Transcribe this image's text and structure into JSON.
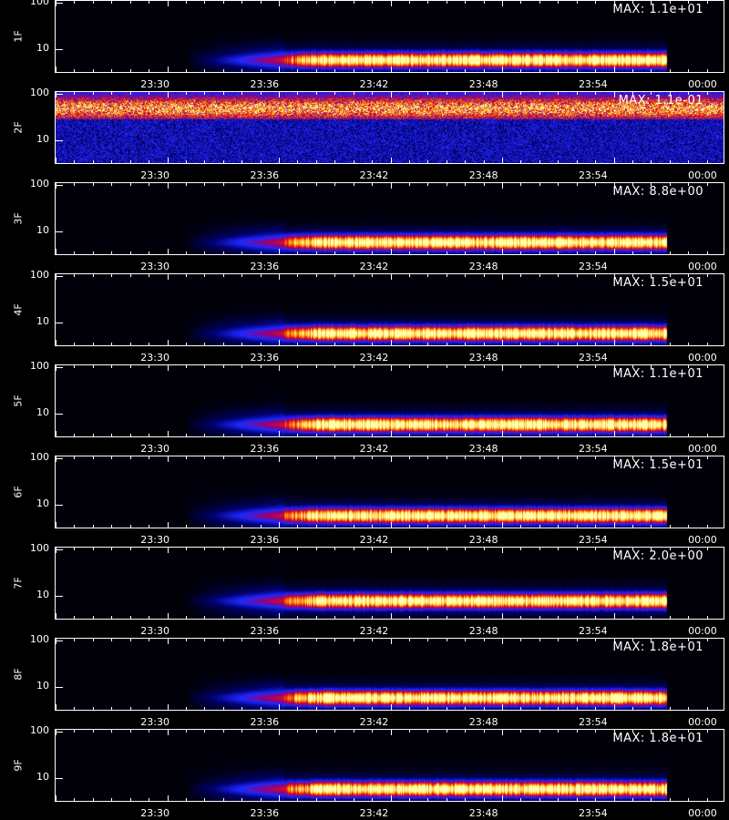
{
  "chart_data": {
    "type": "heatmap",
    "x_tick_labels": [
      "23:30",
      "23:36",
      "23:42",
      "23:48",
      "23:54",
      "00:00"
    ],
    "y_tick_labels": [
      "100",
      "10"
    ],
    "axis_title_x": "",
    "panels": [
      {
        "label": "1F",
        "max_label": "MAX: 1.1e+01",
        "band_start": "23:37",
        "band_end": "23:58",
        "band_center": 6,
        "noisy": false
      },
      {
        "label": "2F",
        "max_label": "MAX: 1.1e-01",
        "band_start": "23:25",
        "band_end": "00:01",
        "band_center": 50,
        "noisy": true
      },
      {
        "label": "3F",
        "max_label": "MAX: 8.8e+00",
        "band_start": "23:37",
        "band_end": "23:58",
        "band_center": 6,
        "noisy": false
      },
      {
        "label": "4F",
        "max_label": "MAX: 1.5e+01",
        "band_start": "23:37",
        "band_end": "23:58",
        "band_center": 6,
        "noisy": false
      },
      {
        "label": "5F",
        "max_label": "MAX: 1.1e+01",
        "band_start": "23:37",
        "band_end": "23:58",
        "band_center": 6,
        "noisy": false
      },
      {
        "label": "6F",
        "max_label": "MAX: 1.5e+01",
        "band_start": "23:37",
        "band_end": "23:58",
        "band_center": 6,
        "noisy": false
      },
      {
        "label": "7F",
        "max_label": "MAX: 2.0e+00",
        "band_start": "23:37",
        "band_end": "23:58",
        "band_center": 8,
        "noisy": false
      },
      {
        "label": "8F",
        "max_label": "MAX: 1.8e+01",
        "band_start": "23:37",
        "band_end": "23:58",
        "band_center": 6,
        "noisy": false
      },
      {
        "label": "9F",
        "max_label": "MAX: 1.8e+01",
        "band_start": "23:37",
        "band_end": "23:58",
        "band_center": 6,
        "noisy": false
      }
    ]
  }
}
